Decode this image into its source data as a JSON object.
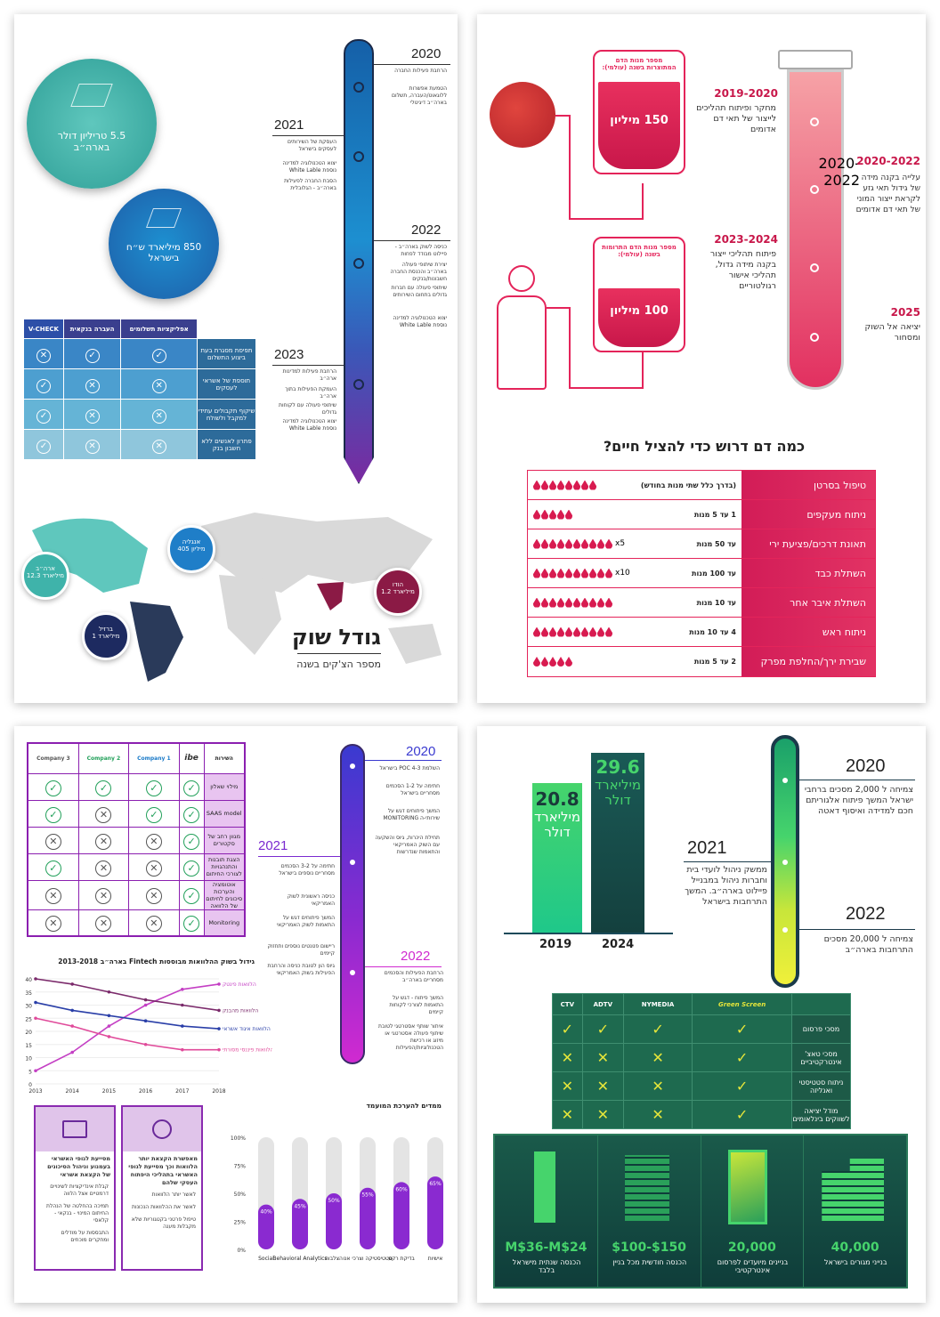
{
  "panel1": {
    "circle_big": "5.5 טריליון דולר בארה״ב",
    "circle_small": "850 מיליארד ש״ח בישראל",
    "timeline": [
      {
        "year": "2020",
        "items": [
          "הרחבת פעילות החברה",
          "הטמעת אפשרות ללוגאוט/העברה, תשלום בארה״ב דיגיטלי"
        ]
      },
      {
        "year": "2021",
        "items": [
          "העסקת של השירותים לעסקים בישראל",
          "יצוא הטכנולוגיה למדינה נוספת White Lable",
          "הסבת החברה לפעילות בארה״ב - הגלובלית"
        ]
      },
      {
        "year": "2022",
        "items": [
          "כניסה לשוק בארה״ב - פיילוט מבודד לפחות",
          "יצירת שיתופי פעולה בארה״ב והכנסת החברה חשבונות/בנקים",
          "שיתופי פעולה עם חברות גדולים בתחום השירותים",
          "יצוא הטכנולוגיה למדינה נוספת White Lable"
        ]
      },
      {
        "year": "2023",
        "items": [
          "הרחבת פעילות למדינות ארה״ב",
          "העמקת הפעילות בתוך ארה״ב",
          "שיתופי פעולה עם לקוחות גדולים",
          "יצוא הטכנולוגיה למדינה נוספת White Lable"
        ]
      }
    ],
    "table": {
      "headers": [
        "V-CHECK",
        "העברה בנקאית",
        "אפליקציות תשלומים"
      ],
      "rows": [
        {
          "label": "תפיסת מסגרת בעת ביצוע התשלום",
          "marks": [
            "x",
            "v",
            "v"
          ]
        },
        {
          "label": "תוספת של אשראי לעסקים",
          "marks": [
            "v",
            "x",
            "x"
          ]
        },
        {
          "label": "שיקוף תקבולים עתידי למקבל ולשולח",
          "marks": [
            "v",
            "x",
            "x"
          ]
        },
        {
          "label": "פתרון לאנשים ללא חשבון בנק",
          "marks": [
            "v",
            "x",
            "x"
          ]
        }
      ]
    },
    "map_markers": [
      {
        "name": "אנגליה",
        "value": "405 מיליון"
      },
      {
        "name": "ארה״ב",
        "value": "12.3 מיליארד"
      },
      {
        "name": "הודו",
        "value": "1.2 מיליארד"
      },
      {
        "name": "ברזיל",
        "value": "1 מיליארד"
      }
    ],
    "map_title": "גודל שוק",
    "map_subtitle": "מספר הצ'קים בשנה"
  },
  "panel2": {
    "bag1_label": "מספר מנות הדם המתוצרות בשנה (עולמי):",
    "bag1_value": "150 מיליון",
    "bag2_label": "מספר מנות הדם התרומות בשנה (עולמי):",
    "bag2_value": "100 מיליון",
    "milestones": [
      {
        "year": "2019-2020",
        "text": "מחקר ופיתוח תהליכים לייצור של תאי דם אדומים"
      },
      {
        "year": "2020-2022",
        "text": "עלייה בקנה מידה של גידול תאי גזע לקראת ייצור המוני של תאי דם אדומים"
      },
      {
        "year": "2023-2024",
        "text": "פיתוח תהליכי ייצור בקנה מידה גדול, תהליכי אישור רגולטוריים"
      },
      {
        "year": "2025",
        "text": "יציאה אל השוק ומסחור"
      }
    ],
    "blood_title": "כמה דם דרוש כדי להציל חיים?",
    "blood_rows": [
      {
        "label": "טיפול בסרטן",
        "amount": "(בדרך כלל שתי מנות בחודש)",
        "drops": 8,
        "mult": ""
      },
      {
        "label": "ניתוח מעקפים",
        "amount": "1 עד 5 מנות",
        "drops": 5,
        "mult": ""
      },
      {
        "label": "תאונת דרכים/פציעת ירי",
        "amount": "עד 50 מנות",
        "drops": 10,
        "mult": "x5"
      },
      {
        "label": "השתלת כבד",
        "amount": "עד 100 מנות",
        "drops": 10,
        "mult": "x10"
      },
      {
        "label": "השתלת איבר אחר",
        "amount": "עד 10 מנות",
        "drops": 10,
        "mult": ""
      },
      {
        "label": "ניתוח ראש",
        "amount": "4 עד 10 מנות",
        "drops": 10,
        "mult": ""
      },
      {
        "label": "שבירת ירך/החלפת מפרק",
        "amount": "2 עד 5 מנות",
        "drops": 5,
        "mult": ""
      }
    ]
  },
  "panel3": {
    "table": {
      "headers": [
        "Company 3",
        "Company 2",
        "Company 1",
        "ibe",
        "השירות"
      ],
      "rows": [
        {
          "label": "מילוי שאלון",
          "marks": [
            "v",
            "v",
            "v",
            "v"
          ]
        },
        {
          "label": "SAAS model",
          "marks": [
            "v",
            "x",
            "v",
            "v"
          ]
        },
        {
          "label": "מגוון רחב של סקטורים",
          "marks": [
            "x",
            "x",
            "x",
            "v"
          ]
        },
        {
          "label": "הצגת תובנות והתנהגויות לצורכי החיתום",
          "marks": [
            "v",
            "x",
            "x",
            "v"
          ]
        },
        {
          "label": "אוטומציה והערכות סיכונים לחיתום של הלוואה",
          "marks": [
            "x",
            "x",
            "x",
            "v"
          ]
        },
        {
          "label": "Monitoring",
          "marks": [
            "x",
            "x",
            "x",
            "v"
          ]
        }
      ]
    },
    "timeline": [
      {
        "year": "2020",
        "items": [
          "השלמת POC 4-3 בישראל",
          "חתימה על 1-2 הסכמים מסחריים בישראל",
          "המשך פיתוחים דגש על שירותי-ה MONITORING",
          "תחילת היכרות, גיוס והשקעה עם השוק האמריקאי והתאמות שנדרשות"
        ]
      },
      {
        "year": "2021",
        "items": [
          "חתימה על 3-2 הסכמים מסחריים נוספים בישראל",
          "כניסה ראשונית לשוק האמריקאי",
          "המשך פיתוחים דגש על התאמות לשוק האמריקאי",
          "ריישום פטנטים נוספים ותחזוק קיימים",
          "גיוס הון לטובת כניסה והרחבת הפעילות בשוק האמריקאי"
        ]
      },
      {
        "year": "2022",
        "items": [
          "הרחבת הפעילות והסכמים מסחריים בארה״ב",
          "המשך פיתוח - דגש על התאמות לצורכי לקוחות קיימים",
          "איתור שותף אסטרטגי לטובת שיתוף פעולה אסטרטגי או מיזוג או רכישת הטכנולוגיות/הפעילות"
        ]
      }
    ],
    "line_chart": {
      "title": "גידול בשוק ההלוואות מבוססות Fintech בארה״ב 2013-2018",
      "years": [
        "2013",
        "2014",
        "2015",
        "2016",
        "2017",
        "2018"
      ],
      "series": [
        {
          "name": "הלוואות פינטק",
          "color": "#c43fc4",
          "values": [
            5,
            12,
            22,
            30,
            36,
            38
          ]
        },
        {
          "name": "הלוואות מהבנק",
          "color": "#7b2a6b",
          "values": [
            40,
            38,
            35,
            32,
            30,
            28
          ]
        },
        {
          "name": "הלוואות איגוד אשראי",
          "color": "#2a3fa8",
          "values": [
            31,
            28,
            26,
            24,
            22,
            21
          ]
        },
        {
          "name": "הלוואות פיננסי מסורתי",
          "color": "#e04a9a",
          "values": [
            25,
            22,
            18,
            15,
            13,
            13
          ]
        }
      ]
    },
    "box_left": [
      "מסייעת לגופי האשראי בעמנוע וניהול הסיכונים של הקצאת אשראי",
      "קבלת אינדיקציות לשינויים דרמטיים אצל הלווה",
      "תמיכה בהחלטה של הנהלת החיתום המינוי - בנקאי - קלאסי",
      "התבססות על מודלים ומחקרים מוכחים"
    ],
    "box_right": [
      "מאפשרת הקצאת יותר הלוואות וכך מסייעת לגופי האשראי בתהליכי היפתוח העסקי שלהם",
      "לאשר יותר הלוואות",
      "לאשר את ההלוואות הנכונות",
      "טיפול פרטני בקטגוריות שלא מקבלות מענה"
    ],
    "bar_chart": {
      "title": "ממדים להערכת המועמד",
      "categories": [
        "Social",
        "Behavioral Analytics",
        "הצלבות",
        "סטטיסטיקה וצרכי אנו",
        "בדיקת רקע",
        "אישיות"
      ],
      "values": [
        40,
        45,
        50,
        55,
        60,
        65
      ],
      "yticks": [
        "100%",
        "75%",
        "50%",
        "25%",
        "0%"
      ]
    }
  },
  "panel4": {
    "bar1_value": "20.8",
    "bar1_unit": "מיליארד דולר",
    "bar1_year": "2019",
    "bar2_value": "29.6",
    "bar2_unit": "מיליארד דולר",
    "bar2_year": "2024",
    "milestones": [
      {
        "year": "2020",
        "text": "צמיחה ל 2,000 מסכים ברחבי ישראל המשך פיתוח אלגוריתם חכם למדידה ואיסוף דאטה"
      },
      {
        "year": "2021",
        "text": "ממשק ניהול לועדי בית וחברות ניהול במבנייל פיילוט בארה״ב. המשך התרחבות בישראל"
      },
      {
        "year": "2022",
        "text": "צמיחה ל 20,000 מסכים התרחבות בארה״ב"
      }
    ],
    "table": {
      "headers": [
        "CTV",
        "ADTV",
        "NYMEDIA",
        "Green Screen"
      ],
      "rows": [
        {
          "label": "מסכי פרסום",
          "marks": [
            "v",
            "v",
            "v",
            "v"
          ]
        },
        {
          "label": "מסכי טאצ' אינטרקטיביים",
          "marks": [
            "x",
            "x",
            "x",
            "v"
          ]
        },
        {
          "label": "ניתוח סטטיסטי ואנליזה",
          "marks": [
            "x",
            "x",
            "x",
            "v"
          ]
        },
        {
          "label": "מודל יציאה לשווקים בינלאומים",
          "marks": [
            "x",
            "x",
            "x",
            "v"
          ]
        }
      ]
    },
    "stats": [
      {
        "value": "M$36-M$24",
        "label": "הכנסה שנתית מישראל בלבד"
      },
      {
        "value": "$100-$150",
        "label": "הכנסה חודשית מכל בניין"
      },
      {
        "value": "20,000",
        "label": "בניינים מיועדים לפרסום אינטרקטיבי"
      },
      {
        "value": "40,000",
        "label": "בנייני מגורים בישראל"
      }
    ]
  }
}
